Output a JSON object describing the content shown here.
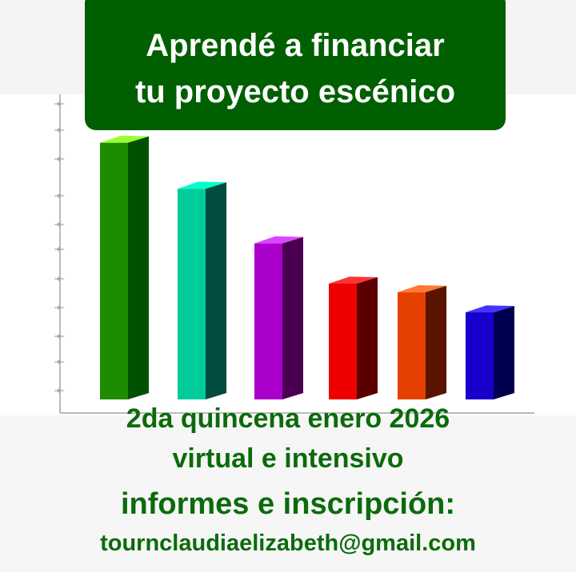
{
  "header": {
    "title_line1": "Aprendé a financiar",
    "title_line2": "tu proyecto escénico"
  },
  "info": {
    "dates": "2da quincena enero 2026",
    "mode": "virtual e intensivo",
    "contact_label": "informes e inscripción:",
    "email": "tournclaudiaelizabeth@gmail.com"
  },
  "colors": {
    "title_bg": "#005f00",
    "text_green": "#0b6b0b"
  },
  "chart_data": {
    "type": "bar",
    "style": "3d",
    "grid": false,
    "ylim": [
      0,
      11
    ],
    "values": [
      9.4,
      7.8,
      5.9,
      4.5,
      4.2,
      3.5
    ],
    "colors": [
      {
        "front": "#1e8c00",
        "side": "#005000",
        "top": "#99ff33"
      },
      {
        "front": "#00cc99",
        "side": "#004d40",
        "top": "#00ffcc"
      },
      {
        "front": "#aa00cc",
        "side": "#4a0050",
        "top": "#dd44ff"
      },
      {
        "front": "#ee0000",
        "side": "#5a0000",
        "top": "#ff3333"
      },
      {
        "front": "#e64000",
        "side": "#5a1400",
        "top": "#ff7733"
      },
      {
        "front": "#1800cc",
        "side": "#000050",
        "top": "#4433ff"
      }
    ]
  }
}
